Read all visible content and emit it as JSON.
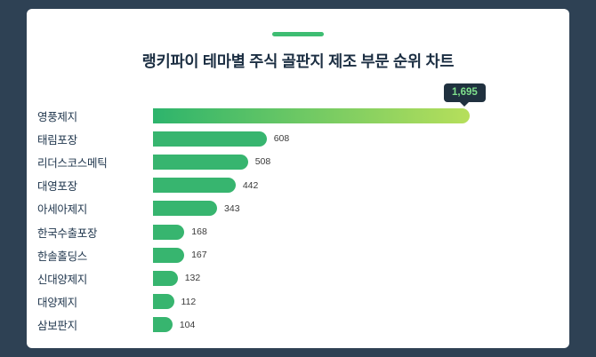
{
  "page": {
    "background_color": "#2e4154"
  },
  "card": {
    "title": "랭키파이 테마별 주식 골판지 제조 부문 순위 차트"
  },
  "tooltip": {
    "value": "1,695"
  },
  "colors": {
    "accent": "#3ebd72",
    "bar": "#37b56f",
    "highlight_gradient_start": "#2db46c",
    "highlight_gradient_end": "#b6df5b",
    "tooltip_background": "#20313f",
    "tooltip_text": "#7fe08c"
  },
  "chart_data": {
    "type": "bar",
    "orientation": "horizontal",
    "title": "랭키파이 테마별 주식 골판지 제조 부문 순위 차트",
    "categories": [
      "영풍제지",
      "태림포장",
      "리더스코스메틱",
      "대영포장",
      "아세아제지",
      "한국수출포장",
      "한솔홀딩스",
      "신대양제지",
      "대양제지",
      "삼보판지"
    ],
    "values": [
      1695,
      608,
      508,
      442,
      343,
      168,
      167,
      132,
      112,
      104
    ],
    "value_labels": [
      "1,695",
      "608",
      "508",
      "442",
      "343",
      "168",
      "167",
      "132",
      "112",
      "104"
    ],
    "xlim": [
      0,
      1695
    ],
    "highlight_index": 0,
    "grid": false,
    "legend": false
  }
}
